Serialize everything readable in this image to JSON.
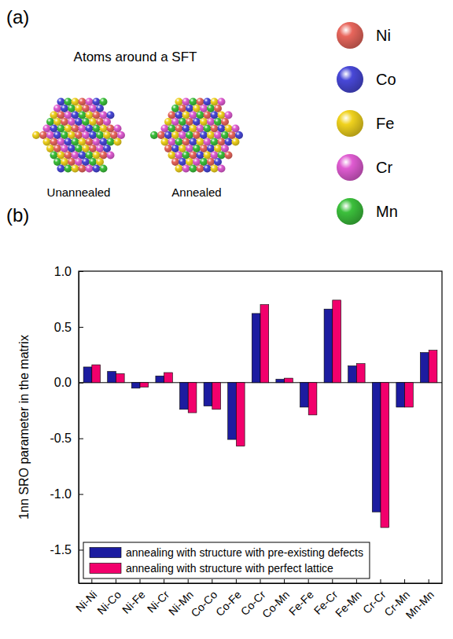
{
  "panel_labels": [
    "(a)",
    "(b)"
  ],
  "panel_a": {
    "title": "Atoms around a SFT",
    "structures": [
      "Unannealed",
      "Annealed"
    ],
    "elements": [
      {
        "name": "Ni",
        "color": "#e8665c"
      },
      {
        "name": "Co",
        "color": "#4848d8"
      },
      {
        "name": "Fe",
        "color": "#f0d21e"
      },
      {
        "name": "Cr",
        "color": "#e05cd2"
      },
      {
        "name": "Mn",
        "color": "#3cc03c"
      }
    ]
  },
  "chart_data": {
    "type": "bar",
    "y_label": "1nn SRO parameter in the matrix",
    "categories": [
      "Ni-Ni",
      "Ni-Co",
      "Ni-Fe",
      "Ni-Cr",
      "Ni-Mn",
      "Co-Co",
      "Co-Fe",
      "Co-Cr",
      "Co-Mn",
      "Fe-Fe",
      "Fe-Cr",
      "Fe-Mn",
      "Cr-Cr",
      "Cr-Mn",
      "Mn-Mn"
    ],
    "series": [
      {
        "name": "annealing with structure with pre-existing defects",
        "color": "#1c1ca0",
        "values": [
          0.14,
          0.1,
          -0.05,
          0.06,
          -0.24,
          -0.21,
          -0.51,
          0.62,
          0.03,
          -0.22,
          0.66,
          0.15,
          -1.16,
          -0.22,
          0.27
        ]
      },
      {
        "name": "annealing with structure with perfect lattice",
        "color": "#f2006c",
        "values": [
          0.16,
          0.08,
          -0.04,
          0.09,
          -0.27,
          -0.24,
          -0.57,
          0.7,
          0.04,
          -0.29,
          0.74,
          0.17,
          -1.3,
          -0.22,
          0.29
        ]
      }
    ],
    "ylim": [
      -1.8,
      1.0
    ],
    "yticks": [
      -1.5,
      {
        "value": -1.0,
        "label": "-1.0"
      },
      -0.5,
      {
        "value": 0,
        "label": "0.0"
      },
      0.5,
      {
        "value": 1.0,
        "label": "1.0"
      }
    ],
    "legend": "lower left"
  }
}
